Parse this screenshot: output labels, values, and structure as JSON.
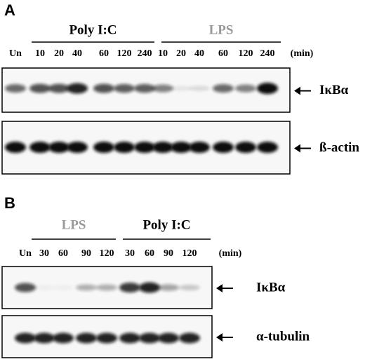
{
  "panels": [
    {
      "letter": "A",
      "groups": [
        {
          "label": "Poly I:C",
          "color": "#000000"
        },
        {
          "label": "LPS",
          "color": "#999999"
        }
      ],
      "lanes": [
        "Un",
        "10",
        "20",
        "40",
        "60",
        "120",
        "240",
        "10",
        "20",
        "40",
        "60",
        "120",
        "240"
      ],
      "unit": "(min)",
      "blots": [
        {
          "label": "IκBα"
        },
        {
          "label": "ß-actin"
        }
      ]
    },
    {
      "letter": "B",
      "groups": [
        {
          "label": "LPS",
          "color": "#999999"
        },
        {
          "label": "Poly I:C",
          "color": "#000000"
        }
      ],
      "lanes": [
        "Un",
        "30",
        "60",
        "90",
        "120",
        "30",
        "60",
        "90",
        "120"
      ],
      "unit": "(min)",
      "blots": [
        {
          "label": "IκBα"
        },
        {
          "label": "α-tubulin"
        }
      ]
    }
  ]
}
